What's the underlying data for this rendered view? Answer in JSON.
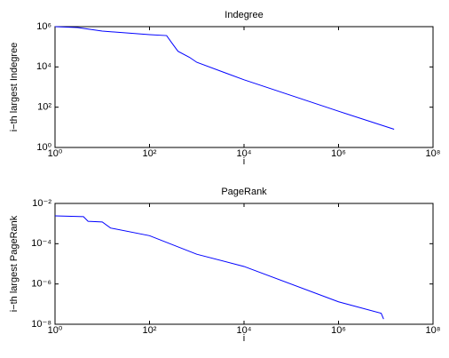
{
  "chart_data": [
    {
      "type": "line",
      "title": "Indegree",
      "xlabel": "i",
      "ylabel": "i−th largest Indegree",
      "color": "#0000ff",
      "log": true,
      "x": [
        1,
        3,
        10,
        100,
        230,
        300,
        400,
        700,
        1000,
        10000,
        1000000,
        15000000
      ],
      "values": [
        1000000,
        900000,
        600000,
        400000,
        360000,
        150000,
        60000,
        30000,
        17000,
        2300,
        63,
        8
      ],
      "xlim": [
        1,
        100000000
      ],
      "xticks": [
        {
          "value": 1,
          "label": "10⁰"
        },
        {
          "value": 100,
          "label": "10²"
        },
        {
          "value": 10000,
          "label": "10⁴"
        },
        {
          "value": 1000000,
          "label": "10⁶"
        },
        {
          "value": 100000000,
          "label": "10⁸"
        }
      ],
      "ylim": [
        1,
        1000000
      ],
      "yticks": [
        {
          "value": 1,
          "label": "10⁰"
        },
        {
          "value": 100,
          "label": "10²"
        },
        {
          "value": 10000,
          "label": "10⁴"
        },
        {
          "value": 1000000,
          "label": "10⁶"
        }
      ]
    },
    {
      "type": "line",
      "title": "PageRank",
      "xlabel": "i",
      "ylabel": "i−th largest PageRank",
      "color": "#0000ff",
      "log": true,
      "x": [
        1,
        4,
        5,
        10,
        15,
        100,
        1000,
        10000,
        1000000,
        8000000,
        9000000
      ],
      "values": [
        0.0024,
        0.0022,
        0.0013,
        0.0012,
        0.0006,
        0.00025,
        3e-05,
        7.4e-06,
        1.3e-07,
        3.5e-08,
        1.8e-08
      ],
      "xlim": [
        1,
        100000000
      ],
      "xticks": [
        {
          "value": 1,
          "label": "10⁰"
        },
        {
          "value": 100,
          "label": "10²"
        },
        {
          "value": 10000,
          "label": "10⁴"
        },
        {
          "value": 1000000,
          "label": "10⁶"
        },
        {
          "value": 100000000,
          "label": "10⁸"
        }
      ],
      "ylim": [
        1e-08,
        0.01
      ],
      "yticks": [
        {
          "value": 1e-08,
          "label": "10⁻⁸"
        },
        {
          "value": 1e-06,
          "label": "10⁻⁶"
        },
        {
          "value": 0.0001,
          "label": "10⁻⁴"
        },
        {
          "value": 0.01,
          "label": "10⁻²"
        }
      ]
    }
  ]
}
